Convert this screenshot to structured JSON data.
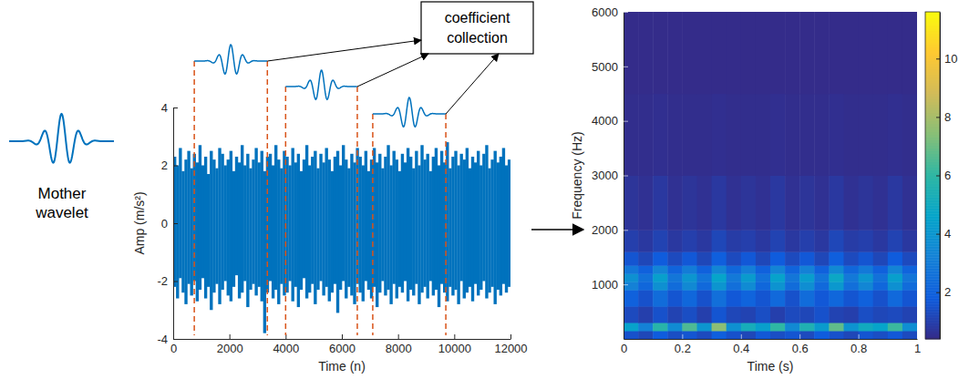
{
  "diagram": {
    "mother_wavelet": "Mother wavelet",
    "box_label": "coefficient collection"
  },
  "chart_data": [
    {
      "type": "area",
      "color": "#0072bd",
      "xlabel": "Time (n)",
      "ylabel": "Amp (m/s²)",
      "xlim": [
        0,
        12000
      ],
      "xticks": [
        0,
        2000,
        4000,
        6000,
        8000,
        10000,
        12000
      ],
      "ylim": [
        -4,
        4
      ],
      "yticks": [
        -4,
        -2,
        0,
        2,
        4
      ],
      "windows": [
        [
          750,
          3350
        ],
        [
          4000,
          6550
        ],
        [
          7100,
          9700
        ]
      ],
      "bins": [
        0,
        100,
        200,
        300,
        400,
        500,
        600,
        700,
        800,
        900,
        1000,
        1100,
        1200,
        1300,
        1400,
        1500,
        1600,
        1700,
        1800,
        1900,
        2000,
        2100,
        2200,
        2300,
        2400,
        2500,
        2600,
        2700,
        2800,
        2900,
        3000,
        3100,
        3200,
        3300,
        3400,
        3500,
        3600,
        3700,
        3800,
        3900,
        4000,
        4100,
        4200,
        4300,
        4400,
        4500,
        4600,
        4700,
        4800,
        4900,
        5000,
        5100,
        5200,
        5300,
        5400,
        5500,
        5600,
        5700,
        5800,
        5900,
        6000,
        6100,
        6200,
        6300,
        6400,
        6500,
        6600,
        6700,
        6800,
        6900,
        7000,
        7100,
        7200,
        7300,
        7400,
        7500,
        7600,
        7700,
        7800,
        7900,
        8000,
        8100,
        8200,
        8300,
        8400,
        8500,
        8600,
        8700,
        8800,
        8900,
        9000,
        9100,
        9200,
        9300,
        9400,
        9500,
        9600,
        9700,
        9800,
        9900,
        10000,
        10100,
        10200,
        10300,
        10400,
        10500,
        10600,
        10700,
        10800,
        10900,
        11000,
        11100,
        11200,
        11300,
        11400,
        11500,
        11600,
        11700,
        11800,
        11900,
        12000
      ],
      "max": [
        2.3,
        2.0,
        2.6,
        1.8,
        2.2,
        2.5,
        1.9,
        2.4,
        2.1,
        2.7,
        2.0,
        2.3,
        1.7,
        2.5,
        2.2,
        1.9,
        2.6,
        2.4,
        2.0,
        2.2,
        2.5,
        1.8,
        2.3,
        2.1,
        2.7,
        2.0,
        2.4,
        1.9,
        2.2,
        2.6,
        2.1,
        2.5,
        1.8,
        2.3,
        2.4,
        2.0,
        2.7,
        2.2,
        1.9,
        2.5,
        2.3,
        2.0,
        2.6,
        2.1,
        2.4,
        1.8,
        2.2,
        2.7,
        2.0,
        2.3,
        2.5,
        1.9,
        2.4,
        2.1,
        2.6,
        2.2,
        1.8,
        2.3,
        2.5,
        2.0,
        2.7,
        2.2,
        1.9,
        2.4,
        2.1,
        2.6,
        2.3,
        2.0,
        2.5,
        1.8,
        2.2,
        2.6,
        2.1,
        2.4,
        1.9,
        2.3,
        2.7,
        2.0,
        2.5,
        2.2,
        1.8,
        2.4,
        2.1,
        2.6,
        2.3,
        1.9,
        2.5,
        2.0,
        2.7,
        2.2,
        2.4,
        1.8,
        2.3,
        2.6,
        2.0,
        2.5,
        2.1,
        2.8,
        1.9,
        2.3,
        2.5,
        2.0,
        2.4,
        2.2,
        2.6,
        1.9,
        2.3,
        2.1,
        2.5,
        2.0,
        2.4,
        2.7,
        1.9,
        2.2,
        2.5,
        2.1,
        2.3,
        2.6,
        2.0,
        2.2
      ],
      "min": [
        -2.2,
        -2.6,
        -1.9,
        -2.4,
        -2.8,
        -2.1,
        -2.5,
        -2.0,
        -2.7,
        -2.3,
        -1.9,
        -2.6,
        -2.2,
        -3.0,
        -2.4,
        -2.1,
        -2.8,
        -2.3,
        -2.0,
        -2.5,
        -2.7,
        -2.2,
        -1.8,
        -2.6,
        -2.4,
        -2.0,
        -2.9,
        -2.3,
        -2.1,
        -2.5,
        -2.2,
        -2.7,
        -3.8,
        -2.4,
        -2.0,
        -2.6,
        -2.3,
        -2.8,
        -2.1,
        -2.5,
        -2.4,
        -2.0,
        -2.7,
        -2.2,
        -2.9,
        -2.3,
        -1.9,
        -2.6,
        -2.4,
        -2.1,
        -2.8,
        -2.3,
        -2.0,
        -2.5,
        -2.2,
        -2.7,
        -2.4,
        -2.1,
        -3.1,
        -2.3,
        -2.0,
        -2.6,
        -2.2,
        -2.5,
        -2.8,
        -2.1,
        -2.4,
        -2.7,
        -2.0,
        -2.3,
        -2.6,
        -2.2,
        -2.9,
        -2.4,
        -2.0,
        -2.5,
        -2.3,
        -2.8,
        -2.1,
        -2.6,
        -2.2,
        -2.4,
        -2.0,
        -2.7,
        -2.3,
        -2.5,
        -2.1,
        -2.8,
        -2.4,
        -2.2,
        -2.6,
        -2.0,
        -2.5,
        -2.3,
        -2.9,
        -2.1,
        -2.4,
        -2.7,
        -2.2,
        -2.5,
        -2.3,
        -2.8,
        -2.0,
        -2.6,
        -2.4,
        -2.2,
        -2.7,
        -2.1,
        -2.5,
        -2.3,
        -2.0,
        -2.6,
        -2.4,
        -2.2,
        -2.8,
        -2.3,
        -2.5,
        -2.1,
        -2.4,
        -2.2
      ]
    },
    {
      "type": "heatmap",
      "xlabel": "Time (s)",
      "ylabel": "Frequency (Hz)",
      "xlim": [
        0,
        1
      ],
      "xticks": [
        0,
        0.2,
        0.4,
        0.6,
        0.8,
        1
      ],
      "ylim": [
        0,
        6000
      ],
      "yticks": [
        1000,
        2000,
        3000,
        4000,
        5000,
        6000
      ],
      "time_edges": [
        0,
        0.05,
        0.1,
        0.15,
        0.2,
        0.25,
        0.3,
        0.35,
        0.4,
        0.45,
        0.5,
        0.55,
        0.6,
        0.65,
        0.7,
        0.75,
        0.8,
        0.85,
        0.9,
        0.95,
        1
      ],
      "frequency_edges": [
        0,
        150,
        300,
        600,
        900,
        1050,
        1200,
        1350,
        1600,
        2000,
        3000,
        4500,
        6000
      ],
      "cells": [
        [
          1.5,
          1.2,
          1.8,
          1.4,
          1.6,
          1.3,
          1.9,
          1.5,
          1.2,
          1.7,
          1.4,
          1.6,
          1.3,
          1.8,
          1.5,
          1.2,
          1.6,
          1.4,
          1.7,
          1.3
        ],
        [
          4.5,
          3.2,
          5.8,
          3.6,
          6.5,
          4.0,
          7.5,
          3.8,
          5.2,
          4.4,
          6.0,
          3.5,
          5.5,
          4.2,
          6.8,
          3.9,
          5.0,
          4.6,
          6.2,
          3.7
        ],
        [
          1.3,
          1.0,
          1.5,
          1.1,
          1.4,
          1.0,
          1.6,
          1.2,
          1.1,
          1.4,
          1.0,
          1.3,
          1.2,
          1.5,
          1.1,
          1.0,
          1.4,
          1.2,
          1.3,
          1.1
        ],
        [
          2.0,
          1.5,
          2.4,
          1.6,
          2.2,
          1.5,
          2.5,
          1.7,
          2.1,
          1.6,
          2.3,
          1.5,
          2.4,
          1.7,
          2.2,
          1.6,
          2.0,
          1.5,
          2.3,
          1.6
        ],
        [
          3.2,
          2.2,
          3.8,
          2.4,
          3.5,
          2.3,
          4.0,
          2.5,
          3.6,
          2.2,
          3.9,
          2.4,
          3.7,
          2.3,
          4.1,
          2.5,
          3.4,
          2.2,
          3.8,
          2.4
        ],
        [
          3.8,
          2.6,
          4.4,
          2.8,
          4.0,
          2.7,
          4.6,
          2.9,
          4.2,
          2.6,
          4.5,
          2.8,
          4.3,
          2.7,
          4.8,
          2.9,
          4.0,
          2.6,
          4.4,
          2.8
        ],
        [
          2.8,
          2.0,
          3.3,
          2.1,
          3.0,
          2.0,
          3.4,
          2.2,
          3.1,
          2.0,
          3.3,
          2.1,
          3.2,
          2.0,
          3.5,
          2.2,
          2.9,
          2.0,
          3.3,
          2.1
        ],
        [
          1.6,
          1.2,
          1.8,
          1.3,
          1.7,
          1.2,
          1.9,
          1.3,
          1.7,
          1.2,
          1.8,
          1.3,
          1.7,
          1.2,
          1.9,
          1.3,
          1.6,
          1.2,
          1.8,
          1.3
        ],
        [
          1.0,
          0.8,
          1.1,
          0.8,
          1.0,
          0.8,
          1.2,
          0.9,
          1.0,
          0.8,
          1.1,
          0.8,
          1.0,
          0.8,
          1.2,
          0.9,
          1.0,
          0.8,
          1.1,
          0.8
        ],
        [
          0.7,
          0.6,
          0.8,
          0.6,
          0.7,
          0.6,
          0.8,
          0.6,
          0.7,
          0.6,
          0.8,
          0.6,
          0.7,
          0.6,
          0.8,
          0.6,
          0.7,
          0.6,
          0.8,
          0.6
        ],
        [
          0.5,
          0.5,
          0.55,
          0.5,
          0.5,
          0.5,
          0.55,
          0.5,
          0.5,
          0.5,
          0.55,
          0.5,
          0.5,
          0.5,
          0.55,
          0.5,
          0.5,
          0.5,
          0.55,
          0.5
        ],
        [
          0.45,
          0.45,
          0.45,
          0.45,
          0.45,
          0.45,
          0.45,
          0.45,
          0.45,
          0.45,
          0.45,
          0.45,
          0.45,
          0.45,
          0.45,
          0.45,
          0.45,
          0.45,
          0.45,
          0.45
        ]
      ],
      "colorbar": {
        "lim": [
          0.4,
          11.6
        ],
        "ticks": [
          2,
          4,
          6,
          8,
          10
        ]
      }
    }
  ]
}
